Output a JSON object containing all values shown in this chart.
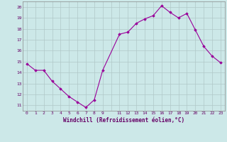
{
  "x": [
    0,
    1,
    2,
    3,
    4,
    5,
    6,
    7,
    8,
    9,
    11,
    12,
    13,
    14,
    15,
    16,
    17,
    18,
    19,
    20,
    21,
    22,
    23
  ],
  "y": [
    14.8,
    14.2,
    14.2,
    13.2,
    12.5,
    11.8,
    11.3,
    10.8,
    11.5,
    14.2,
    17.5,
    17.7,
    18.5,
    18.9,
    19.2,
    20.1,
    19.5,
    19.0,
    19.4,
    17.9,
    16.4,
    15.5,
    14.9
  ],
  "line_color": "#990099",
  "marker": "D",
  "marker_size": 1.8,
  "bg_color": "#cce8e8",
  "grid_color": "#b0c8c8",
  "xlabel": "Windchill (Refroidissement éolien,°C)",
  "xlabel_color": "#660066",
  "tick_color": "#660066",
  "xlim": [
    -0.5,
    23.5
  ],
  "ylim": [
    10.5,
    20.5
  ],
  "yticks": [
    11,
    12,
    13,
    14,
    15,
    16,
    17,
    18,
    19,
    20
  ],
  "xtick_labels": [
    "0",
    "1",
    "2",
    "3",
    "4",
    "5",
    "6",
    "7",
    "8",
    "9",
    "",
    "11",
    "12",
    "13",
    "14",
    "15",
    "16",
    "17",
    "18",
    "19",
    "20",
    "21",
    "22",
    "23"
  ]
}
